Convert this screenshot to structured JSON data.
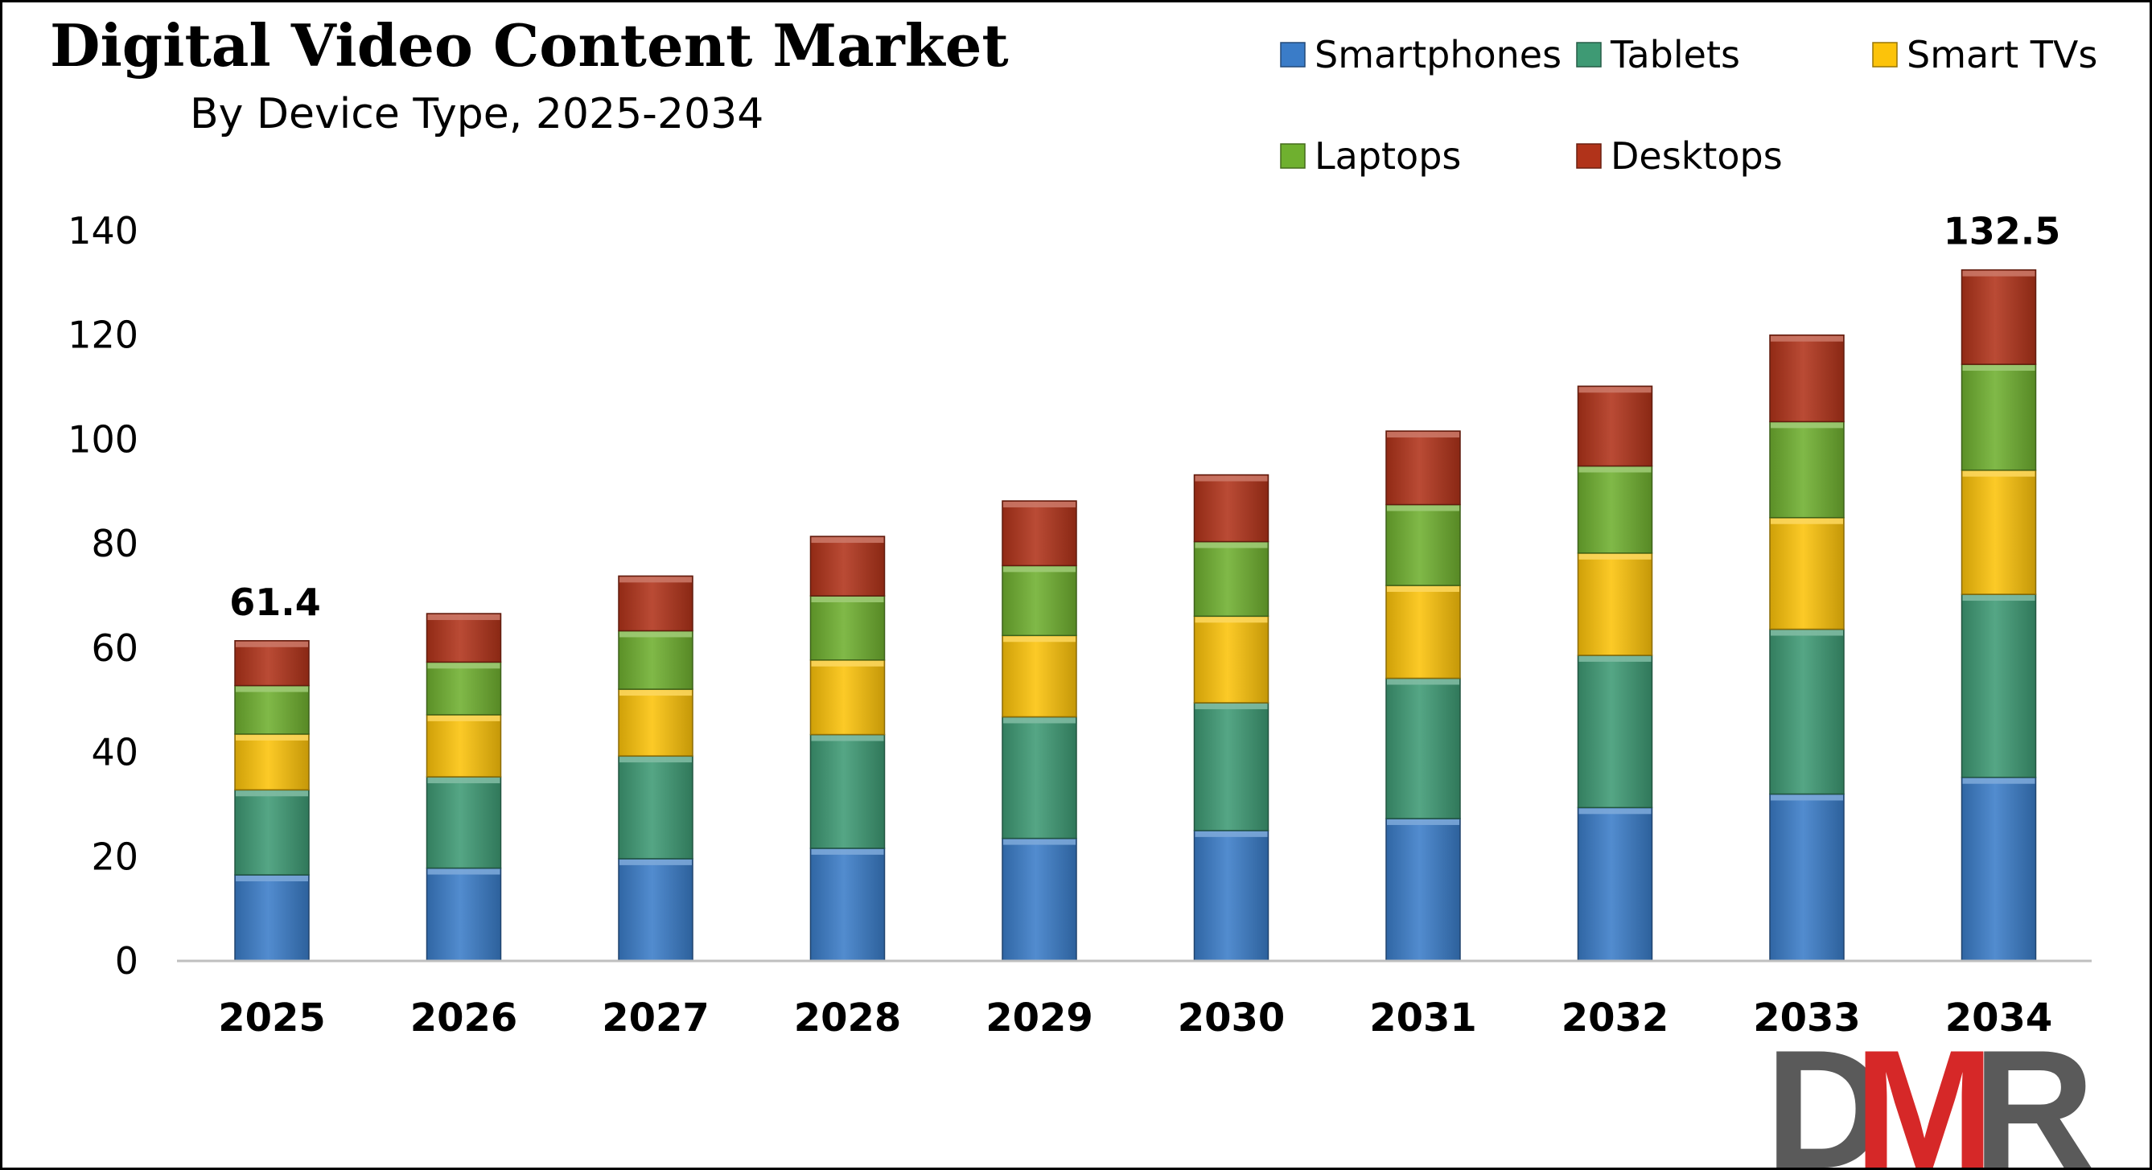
{
  "chart_data": {
    "type": "bar",
    "stacked": true,
    "title": "Digital Video Content Market",
    "subtitle": "By Device Type, 2025-2034",
    "categories": [
      "2025",
      "2026",
      "2027",
      "2028",
      "2029",
      "2030",
      "2031",
      "2032",
      "2033",
      "2034"
    ],
    "ylim": [
      0,
      140
    ],
    "yticks": [
      0,
      20,
      40,
      60,
      80,
      100,
      120,
      140
    ],
    "grid": false,
    "legend_position": "top-right",
    "series": [
      {
        "name": "Smartphones",
        "color": "#3a7cc8",
        "values": [
          16.5,
          17.8,
          19.6,
          21.6,
          23.5,
          25.0,
          27.3,
          29.4,
          32.0,
          35.2
        ]
      },
      {
        "name": "Tablets",
        "color": "#3e9a74",
        "values": [
          16.3,
          17.5,
          19.7,
          21.8,
          23.3,
          24.5,
          26.9,
          29.2,
          31.6,
          35.1
        ]
      },
      {
        "name": "Smart TVs",
        "color": "#fcc30a",
        "values": [
          10.7,
          11.9,
          12.8,
          14.3,
          15.6,
          16.6,
          17.8,
          19.6,
          21.4,
          23.8
        ]
      },
      {
        "name": "Laptops",
        "color": "#6fb02f",
        "values": [
          9.3,
          10.1,
          11.2,
          12.3,
          13.4,
          14.3,
          15.5,
          16.7,
          18.4,
          20.3
        ]
      },
      {
        "name": "Desktops",
        "color": "#b1331a",
        "values": [
          8.6,
          9.3,
          10.5,
          11.4,
          12.4,
          12.8,
          14.1,
          15.3,
          16.6,
          18.1
        ]
      }
    ],
    "data_labels": [
      {
        "category": "2025",
        "text": "61.4"
      },
      {
        "category": "2034",
        "text": "132.5"
      }
    ]
  },
  "logo": {
    "text": "DMR",
    "colors": [
      "#5a5a5a",
      "#d62828",
      "#5a5a5a"
    ]
  }
}
